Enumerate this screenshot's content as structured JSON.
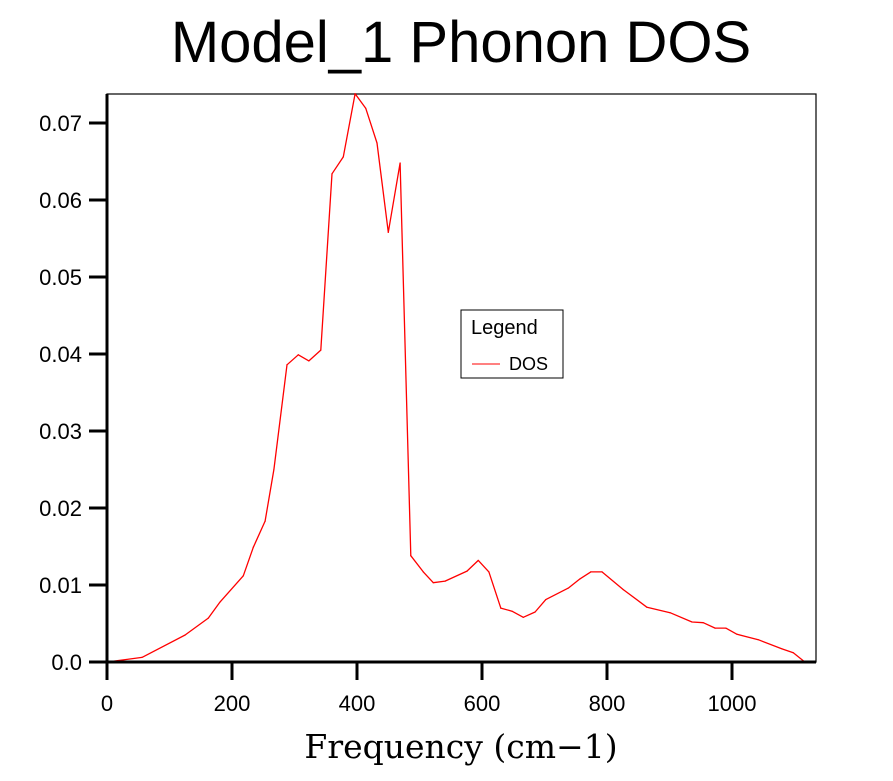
{
  "chart_data": {
    "type": "line",
    "title": "Model_1 Phonon DOS",
    "xlabel": "Frequency (cm−1)",
    "ylabel": "",
    "xlim": [
      0,
      1135
    ],
    "ylim": [
      0,
      0.0745
    ],
    "xticks": [
      0,
      200,
      400,
      600,
      800,
      1000
    ],
    "xtick_labels": [
      "0",
      "200",
      "400",
      "600",
      "800",
      "1000"
    ],
    "yticks": [
      0,
      0.01,
      0.02,
      0.03,
      0.04,
      0.05,
      0.06,
      0.07
    ],
    "ytick_labels": [
      "0.0",
      "0.01",
      "0.02",
      "0.03",
      "0.04",
      "0.05",
      "0.06",
      "0.07"
    ],
    "grid": false,
    "legend": {
      "title": "Legend",
      "placement": "center-right",
      "entries": [
        "DOS"
      ]
    },
    "series": [
      {
        "name": "DOS",
        "color": "#ff0000",
        "x": [
          0,
          56,
          125,
          162,
          181,
          218,
          234,
          253,
          267,
          288,
          306,
          323,
          342,
          360,
          378,
          397,
          414,
          432,
          450,
          469,
          486,
          506,
          522,
          541,
          576,
          594,
          611,
          630,
          648,
          666,
          685,
          702,
          738,
          757,
          774,
          792,
          826,
          864,
          901,
          936,
          954,
          973,
          990,
          1008,
          1042,
          1080,
          1098,
          1115
        ],
        "y": [
          0.0,
          0.0006,
          0.0035,
          0.0057,
          0.0078,
          0.0112,
          0.0149,
          0.0183,
          0.025,
          0.0386,
          0.0399,
          0.0391,
          0.0405,
          0.0634,
          0.0656,
          0.0738,
          0.0719,
          0.0674,
          0.0558,
          0.0648,
          0.0138,
          0.0117,
          0.0103,
          0.0105,
          0.0118,
          0.0132,
          0.0117,
          0.007,
          0.0066,
          0.0058,
          0.0065,
          0.0081,
          0.0096,
          0.0108,
          0.0117,
          0.0117,
          0.0094,
          0.0071,
          0.0064,
          0.0052,
          0.0051,
          0.0044,
          0.0044,
          0.0036,
          0.0029,
          0.0017,
          0.0012,
          0.0001
        ]
      }
    ]
  }
}
